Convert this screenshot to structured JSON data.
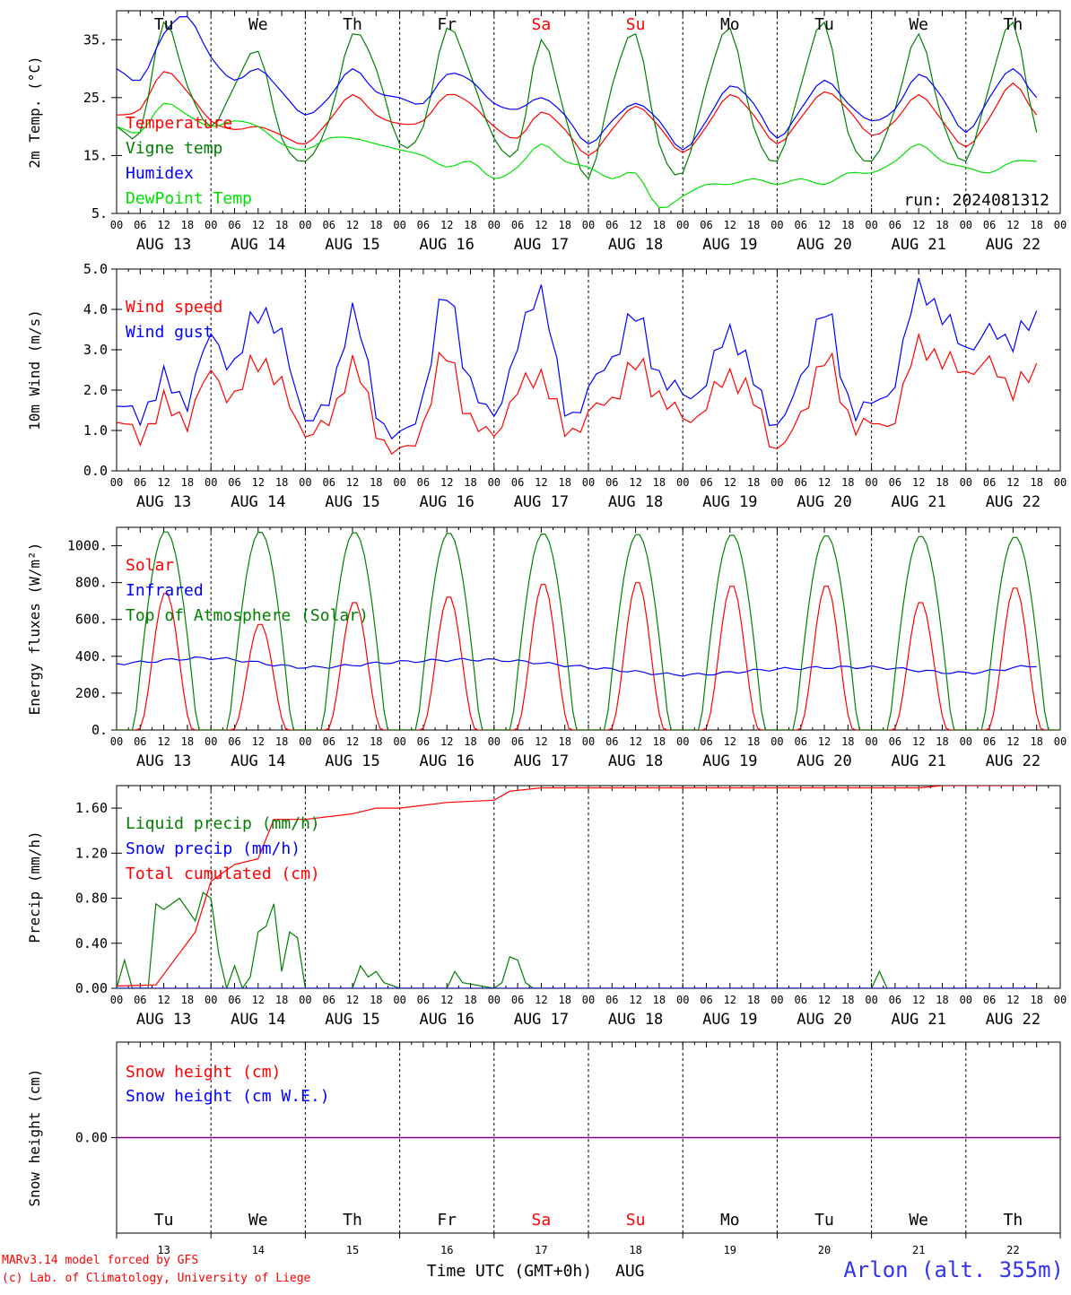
{
  "colors": {
    "red": "#ff0000",
    "dark_green": "#008000",
    "blue": "#0000ff",
    "light_green": "#00e000",
    "purple": "#800080",
    "title_blue": "#3333ee",
    "black": "#000000"
  },
  "time_axis": {
    "hour_ticks": [
      "00",
      "06",
      "12",
      "18"
    ],
    "date_labels": [
      "AUG 13",
      "AUG 14",
      "AUG 15",
      "AUG 16",
      "AUG 17",
      "AUG 18",
      "AUG 19",
      "AUG 20",
      "AUG 21",
      "AUG 22"
    ],
    "weekdays": [
      {
        "label": "Tu",
        "color": "#000000"
      },
      {
        "label": "We",
        "color": "#000000"
      },
      {
        "label": "Th",
        "color": "#000000"
      },
      {
        "label": "Fr",
        "color": "#000000"
      },
      {
        "label": "Sa",
        "color": "#ff0000"
      },
      {
        "label": "Su",
        "color": "#ff0000"
      },
      {
        "label": "Mo",
        "color": "#000000"
      },
      {
        "label": "Tu",
        "color": "#000000"
      },
      {
        "label": "We",
        "color": "#000000"
      },
      {
        "label": "Th",
        "color": "#000000"
      }
    ],
    "day_numbers": [
      "13",
      "14",
      "15",
      "16",
      "17",
      "18",
      "19",
      "20",
      "21",
      "22"
    ],
    "xlabel": "Time UTC (GMT+0h)",
    "month": "AUG"
  },
  "footer": {
    "model_line": "MARv3.14 model forced by GFS",
    "credit_line": "(c) Lab. of Climatology, University of Liege",
    "station": "Arlon (alt. 355m)"
  },
  "chart_data": [
    {
      "type": "line",
      "ylabel": "2m Temp. (°C)",
      "ylim": [
        5,
        40
      ],
      "yticks": [
        5,
        15,
        25,
        35
      ],
      "ytick_labels": [
        "5.",
        "15.",
        "25.",
        "35."
      ],
      "run_label": "run: 2024081312",
      "x_unit": "hours since AUG 13 00 UTC",
      "series": [
        {
          "name": "Temperature",
          "color": "#ff0000",
          "x": [
            0,
            6,
            12,
            18,
            24,
            30,
            36,
            42,
            48,
            54,
            60,
            66,
            72,
            78,
            84,
            90,
            96,
            102,
            108,
            114,
            120,
            126,
            132,
            138,
            144,
            150,
            156,
            162,
            168,
            174,
            180,
            186,
            192,
            198,
            204,
            210,
            216,
            222,
            228,
            234
          ],
          "values": [
            22,
            23,
            29.5,
            26,
            21,
            19.5,
            20,
            18.5,
            17,
            21,
            25.5,
            22,
            20.5,
            21,
            25.5,
            24,
            20,
            18,
            22.5,
            19.5,
            15,
            19.5,
            23.5,
            20,
            15.5,
            20,
            25.5,
            22,
            17,
            21.5,
            26,
            23,
            18.5,
            21,
            25.5,
            21,
            16.5,
            21.5,
            27.5,
            22
          ]
        },
        {
          "name": "Vigne temp",
          "color": "#008000",
          "x": [
            0,
            6,
            12,
            18,
            24,
            30,
            36,
            42,
            48,
            54,
            60,
            66,
            72,
            78,
            84,
            90,
            96,
            102,
            108,
            114,
            120,
            126,
            132,
            138,
            144,
            150,
            156,
            162,
            168,
            174,
            180,
            186,
            192,
            198,
            204,
            210,
            216,
            222,
            228,
            234
          ],
          "values": [
            20,
            19,
            38,
            27,
            20,
            27,
            33,
            18,
            14,
            21,
            36,
            30,
            17,
            20,
            37,
            29,
            18,
            16,
            35,
            22,
            11,
            27,
            36,
            17,
            12,
            27,
            37,
            20,
            14,
            27,
            38,
            19,
            14,
            23,
            36,
            21,
            14,
            27,
            38,
            19
          ]
        },
        {
          "name": "Humidex",
          "color": "#0000ff",
          "x": [
            0,
            6,
            12,
            18,
            24,
            30,
            36,
            42,
            48,
            54,
            60,
            66,
            72,
            78,
            84,
            90,
            96,
            102,
            108,
            114,
            120,
            126,
            132,
            138,
            144,
            150,
            156,
            162,
            168,
            174,
            180,
            186,
            192,
            198,
            204,
            210,
            216,
            222,
            228,
            234
          ],
          "values": [
            30,
            28,
            36,
            39,
            32,
            28,
            30,
            26,
            22,
            25,
            30,
            26,
            25,
            24,
            29,
            28,
            24,
            23,
            25,
            22,
            17,
            21,
            24,
            21,
            16,
            21,
            27,
            24,
            18,
            23,
            28,
            24,
            21,
            23,
            29,
            25,
            19,
            25,
            30,
            25
          ]
        },
        {
          "name": "DewPoint Temp",
          "color": "#00e000",
          "x": [
            0,
            6,
            12,
            18,
            24,
            30,
            36,
            42,
            48,
            54,
            60,
            66,
            72,
            78,
            84,
            90,
            96,
            102,
            108,
            114,
            120,
            126,
            132,
            138,
            144,
            150,
            156,
            162,
            168,
            174,
            180,
            186,
            192,
            198,
            204,
            210,
            216,
            222,
            228,
            234
          ],
          "values": [
            20,
            19,
            24,
            22,
            20,
            21,
            20,
            17,
            16,
            18,
            18,
            17,
            16,
            15,
            13,
            14,
            11,
            13,
            17,
            14,
            13,
            11,
            12,
            6,
            8,
            10,
            10,
            11,
            10,
            11,
            10,
            12,
            12,
            14,
            17,
            14,
            13,
            12,
            14,
            14
          ]
        }
      ]
    },
    {
      "type": "line",
      "ylabel": "10m Wind (m/s)",
      "ylim": [
        0,
        5
      ],
      "yticks": [
        0,
        1,
        2,
        3,
        4,
        5
      ],
      "ytick_labels": [
        "0.0",
        "1.0",
        "2.0",
        "3.0",
        "4.0",
        "5.0"
      ],
      "x_unit": "hours since AUG 13 00 UTC",
      "series": [
        {
          "name": "Wind speed",
          "color": "#ff0000",
          "x": [
            0,
            6,
            12,
            18,
            24,
            30,
            36,
            42,
            48,
            54,
            60,
            66,
            72,
            78,
            84,
            90,
            96,
            102,
            108,
            114,
            120,
            126,
            132,
            138,
            144,
            150,
            156,
            162,
            168,
            174,
            180,
            186,
            192,
            198,
            204,
            210,
            216,
            222,
            228,
            234
          ],
          "values": [
            1.2,
            0.9,
            1.6,
            1.3,
            2.4,
            1.8,
            2.8,
            2.0,
            1.0,
            1.2,
            2.6,
            1.1,
            0.4,
            1.2,
            2.9,
            1.2,
            1.0,
            1.9,
            2.4,
            1.0,
            1.4,
            1.8,
            2.6,
            1.9,
            1.3,
            1.6,
            2.4,
            1.7,
            0.6,
            1.3,
            2.8,
            1.4,
            1.1,
            1.4,
            3.1,
            2.7,
            2.5,
            2.6,
            2.1,
            2.4
          ]
        },
        {
          "name": "Wind gust",
          "color": "#0000ff",
          "x": [
            0,
            6,
            12,
            18,
            24,
            30,
            36,
            42,
            48,
            54,
            60,
            66,
            72,
            78,
            84,
            90,
            96,
            102,
            108,
            114,
            120,
            126,
            132,
            138,
            144,
            150,
            156,
            162,
            168,
            174,
            180,
            186,
            192,
            198,
            204,
            210,
            216,
            222,
            228,
            234
          ],
          "values": [
            1.6,
            1.4,
            2.2,
            1.8,
            3.3,
            2.6,
            4.0,
            3.2,
            1.4,
            1.7,
            3.9,
            1.6,
            0.8,
            1.9,
            4.4,
            2.1,
            1.5,
            3.0,
            4.5,
            1.5,
            2.0,
            2.8,
            3.8,
            2.4,
            1.9,
            2.2,
            3.5,
            2.2,
            1.2,
            2.2,
            4.0,
            1.8,
            1.6,
            2.3,
            4.5,
            3.8,
            3.1,
            3.4,
            3.3,
            3.7
          ]
        }
      ]
    },
    {
      "type": "line",
      "ylabel": "Energy fluxes (W/m²)",
      "ylim": [
        0,
        1100
      ],
      "yticks": [
        0,
        200,
        400,
        600,
        800,
        1000
      ],
      "ytick_labels": [
        "0.",
        "200.",
        "400.",
        "600.",
        "800.",
        "1000."
      ],
      "x_unit": "hours since AUG 13 00 UTC",
      "series": [
        {
          "name": "Solar",
          "color": "#ff0000",
          "day_peaks": [
            750,
            580,
            700,
            730,
            800,
            810,
            790,
            790,
            700,
            780
          ]
        },
        {
          "name": "Infrared",
          "color": "#0000ff",
          "x": [
            0,
            24,
            48,
            72,
            96,
            120,
            144,
            168,
            192,
            216,
            234
          ],
          "values": [
            360,
            390,
            340,
            370,
            380,
            340,
            300,
            330,
            340,
            310,
            350
          ]
        },
        {
          "name": "Top of Atmosphere (Solar)",
          "color": "#008000",
          "day_peaks": [
            1080,
            1078,
            1075,
            1072,
            1068,
            1065,
            1062,
            1058,
            1055,
            1050
          ]
        }
      ]
    },
    {
      "type": "line",
      "ylabel": "Precip (mm/h)",
      "ylim": [
        0,
        1.8
      ],
      "yticks": [
        0,
        0.4,
        0.8,
        1.2,
        1.6
      ],
      "ytick_labels": [
        "0.00",
        "0.40",
        "0.80",
        "1.20",
        "1.60"
      ],
      "x_unit": "hours since AUG 13 00 UTC",
      "series": [
        {
          "name": "Liquid precip (mm/h)",
          "color": "#008000",
          "x": [
            0,
            2,
            4,
            8,
            10,
            12,
            16,
            20,
            22,
            24,
            26,
            28,
            30,
            32,
            34,
            36,
            38,
            40,
            42,
            44,
            46,
            48,
            60,
            62,
            64,
            66,
            68,
            72,
            84,
            86,
            88,
            96,
            98,
            100,
            102,
            104,
            106,
            108,
            120,
            192,
            194,
            196,
            198,
            234
          ],
          "values": [
            0,
            0.25,
            0,
            0,
            0.75,
            0.7,
            0.8,
            0.6,
            0.85,
            0.8,
            0.3,
            0,
            0.2,
            0,
            0.1,
            0.5,
            0.55,
            0.75,
            0.15,
            0.5,
            0.45,
            0,
            0,
            0.2,
            0.1,
            0.15,
            0.05,
            0,
            0,
            0.15,
            0.05,
            0,
            0.05,
            0.28,
            0.25,
            0.05,
            0,
            0,
            0,
            0,
            0.15,
            0,
            0,
            0
          ]
        },
        {
          "name": "Snow precip (mm/h)",
          "color": "#0000ff",
          "x": [
            0,
            234
          ],
          "values": [
            0,
            0
          ]
        },
        {
          "name": "Total cumulated (cm)",
          "color": "#ff0000",
          "x": [
            0,
            10,
            20,
            24,
            30,
            36,
            40,
            48,
            60,
            66,
            72,
            84,
            96,
            100,
            108,
            132,
            156,
            180,
            204,
            210,
            234
          ],
          "values": [
            0.02,
            0.03,
            0.5,
            0.95,
            1.1,
            1.15,
            1.5,
            1.5,
            1.55,
            1.6,
            1.6,
            1.65,
            1.67,
            1.75,
            1.78,
            1.78,
            1.78,
            1.78,
            1.78,
            1.8,
            1.8
          ]
        }
      ]
    },
    {
      "type": "line",
      "ylabel": "Snow height (cm)",
      "ylim": [
        -1,
        1
      ],
      "yticks": [
        0
      ],
      "ytick_labels": [
        "0.00"
      ],
      "x_unit": "hours since AUG 13 00 UTC",
      "series": [
        {
          "name": "Snow height (cm)",
          "color": "#ff0000",
          "x": [
            0,
            240
          ],
          "values": [
            0,
            0
          ]
        },
        {
          "name": "Snow height (cm W.E.)",
          "color": "#0000ff",
          "x": [
            0,
            240
          ],
          "values": [
            0,
            0
          ]
        }
      ]
    }
  ]
}
